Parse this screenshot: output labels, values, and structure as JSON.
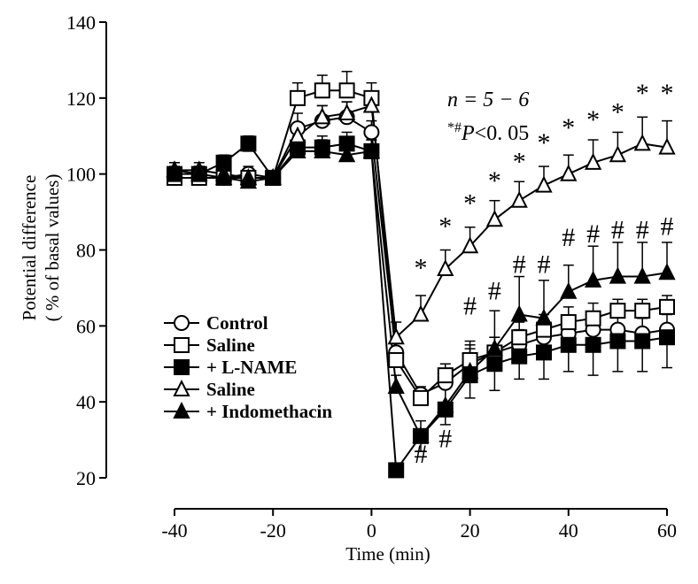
{
  "chart_data": {
    "type": "line",
    "xlabel": "Time (min)",
    "ylabel": "Potential difference",
    "ylabel_sub": "( % of basal values)",
    "xlim": [
      -40,
      60
    ],
    "ylim": [
      20,
      140
    ],
    "xticks": [
      -40,
      -20,
      0,
      20,
      40,
      60
    ],
    "yticks": [
      20,
      40,
      60,
      80,
      100,
      120,
      140
    ],
    "legend_position": "left-middle",
    "annotations": [
      {
        "id": "n",
        "text": "n = 5 − 6"
      },
      {
        "id": "p",
        "text": "*#P<0. 05"
      }
    ],
    "legend": [
      {
        "text": "Control",
        "series": "s1"
      },
      {
        "text": "Saline",
        "series": "s2"
      },
      {
        "text": "+ L-NAME",
        "series": "s3"
      },
      {
        "text": "Saline",
        "series": "s4"
      },
      {
        "text": "+ Indomethacin",
        "series": "s5"
      }
    ],
    "series": [
      {
        "id": "s1",
        "marker": "circle-open",
        "x": [
          -40,
          -35,
          -30,
          -25,
          -20,
          -15,
          -10,
          -5,
          0,
          5,
          10,
          15,
          20,
          25,
          30,
          35,
          40,
          45,
          50,
          55,
          60
        ],
        "y": [
          99,
          99,
          99,
          100,
          99,
          112,
          114,
          115,
          111,
          53,
          42,
          45,
          50,
          53,
          55,
          57,
          58,
          59,
          59,
          58,
          59
        ],
        "err_up": [
          2,
          2,
          2,
          2,
          0,
          4,
          4,
          4,
          3,
          3,
          2,
          3,
          4,
          4,
          4,
          4,
          4,
          4,
          4,
          4,
          4
        ],
        "err_down": [
          0,
          0,
          0,
          0,
          0,
          0,
          0,
          0,
          0,
          0,
          0,
          0,
          0,
          0,
          0,
          0,
          0,
          0,
          0,
          0,
          0
        ]
      },
      {
        "id": "s2",
        "marker": "square-open",
        "x": [
          -40,
          -35,
          -30,
          -25,
          -20,
          -15,
          -10,
          -5,
          0,
          5,
          10,
          15,
          20,
          25,
          30,
          35,
          40,
          45,
          50,
          55,
          60
        ],
        "y": [
          99,
          99,
          99,
          99,
          99,
          120,
          122,
          122,
          120,
          51,
          41,
          47,
          51,
          53,
          57,
          59,
          61,
          62,
          64,
          64,
          65
        ],
        "err_up": [
          2,
          2,
          2,
          2,
          0,
          4,
          4,
          5,
          4,
          3,
          2,
          3,
          4,
          4,
          4,
          4,
          4,
          4,
          3,
          3,
          3
        ],
        "err_down": [
          0,
          0,
          0,
          0,
          0,
          0,
          0,
          0,
          0,
          0,
          0,
          0,
          0,
          0,
          0,
          0,
          0,
          0,
          0,
          0,
          0
        ]
      },
      {
        "id": "s3",
        "marker": "square-filled",
        "x": [
          -40,
          -35,
          -30,
          -25,
          -20,
          -15,
          -10,
          -5,
          0,
          5,
          10,
          15,
          20,
          25,
          30,
          35,
          40,
          45,
          50,
          55,
          60
        ],
        "y": [
          100,
          100,
          103,
          108,
          99,
          107,
          107,
          108,
          106,
          22,
          31,
          38,
          47,
          50,
          52,
          53,
          55,
          55,
          56,
          56,
          57
        ],
        "err_up": [
          2,
          2,
          2,
          2,
          0,
          3,
          3,
          3,
          3,
          0,
          0,
          0,
          0,
          0,
          0,
          0,
          0,
          0,
          0,
          0,
          0
        ],
        "err_down": [
          2,
          2,
          2,
          2,
          0,
          0,
          0,
          0,
          0,
          0,
          4,
          4,
          6,
          7,
          6,
          7,
          7,
          8,
          8,
          8,
          8
        ]
      },
      {
        "id": "s4",
        "marker": "triangle-open",
        "x": [
          -40,
          -35,
          -30,
          -25,
          -20,
          -15,
          -10,
          -5,
          0,
          5,
          10,
          15,
          20,
          25,
          30,
          35,
          40,
          45,
          50,
          55,
          60
        ],
        "y": [
          101,
          101,
          100,
          99,
          99,
          110,
          115,
          116,
          118,
          57,
          63,
          75,
          81,
          88,
          93,
          97,
          100,
          103,
          105,
          108,
          107
        ],
        "err_up": [
          2,
          2,
          2,
          2,
          0,
          3,
          3,
          3,
          3,
          4,
          5,
          5,
          5,
          5,
          5,
          5,
          5,
          6,
          6,
          7,
          7
        ],
        "err_down": [
          0,
          0,
          0,
          0,
          0,
          0,
          0,
          0,
          0,
          0,
          0,
          0,
          0,
          0,
          0,
          0,
          0,
          0,
          0,
          0,
          0
        ]
      },
      {
        "id": "s5",
        "marker": "triangle-filled",
        "x": [
          -40,
          -35,
          -30,
          -25,
          -20,
          -15,
          -10,
          -5,
          0,
          5,
          10,
          15,
          20,
          25,
          30,
          35,
          40,
          45,
          50,
          55,
          60
        ],
        "y": [
          101,
          100,
          99,
          98,
          99,
          106,
          106,
          105,
          106,
          44,
          31,
          39,
          48,
          54,
          63,
          62,
          69,
          72,
          73,
          73,
          74
        ],
        "err_up": [
          2,
          2,
          2,
          2,
          0,
          3,
          3,
          3,
          3,
          3,
          4,
          6,
          8,
          10,
          10,
          10,
          7,
          9,
          9,
          9,
          8
        ],
        "err_down": [
          0,
          0,
          0,
          0,
          0,
          0,
          0,
          0,
          0,
          0,
          0,
          0,
          0,
          0,
          0,
          0,
          0,
          0,
          0,
          0,
          0
        ]
      }
    ],
    "significance_marks": [
      {
        "symbol": "*",
        "x": 10,
        "y": 73
      },
      {
        "symbol": "*",
        "x": 15,
        "y": 84
      },
      {
        "symbol": "*",
        "x": 20,
        "y": 90
      },
      {
        "symbol": "*",
        "x": 25,
        "y": 96
      },
      {
        "symbol": "*",
        "x": 30,
        "y": 101
      },
      {
        "symbol": "*",
        "x": 35,
        "y": 106
      },
      {
        "symbol": "*",
        "x": 40,
        "y": 110
      },
      {
        "symbol": "*",
        "x": 45,
        "y": 112
      },
      {
        "symbol": "*",
        "x": 50,
        "y": 114
      },
      {
        "symbol": "*",
        "x": 55,
        "y": 119
      },
      {
        "symbol": "*",
        "x": 60,
        "y": 119
      },
      {
        "symbol": "#",
        "x": 10,
        "y": 24
      },
      {
        "symbol": "#",
        "x": 15,
        "y": 28
      },
      {
        "symbol": "#",
        "x": 20,
        "y": 63
      },
      {
        "symbol": "#",
        "x": 25,
        "y": 67
      },
      {
        "symbol": "#",
        "x": 30,
        "y": 74
      },
      {
        "symbol": "#",
        "x": 35,
        "y": 74
      },
      {
        "symbol": "#",
        "x": 40,
        "y": 81
      },
      {
        "symbol": "#",
        "x": 45,
        "y": 82
      },
      {
        "symbol": "#",
        "x": 50,
        "y": 83
      },
      {
        "symbol": "#",
        "x": 55,
        "y": 83
      },
      {
        "symbol": "#",
        "x": 60,
        "y": 84
      }
    ]
  }
}
